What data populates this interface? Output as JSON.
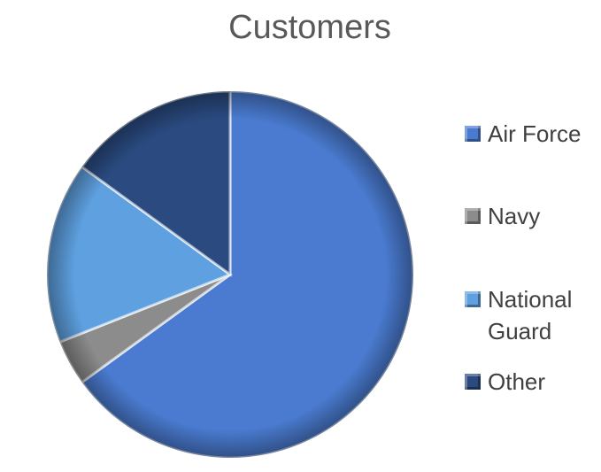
{
  "chart_data": {
    "type": "pie",
    "title": "Customers",
    "categories": [
      "Air Force",
      "Navy",
      "National Guard",
      "Other"
    ],
    "values": [
      65,
      4,
      16,
      15
    ],
    "colors": [
      "#4a7bd0",
      "#8c8c8c",
      "#5ea0e0",
      "#2a4a80"
    ],
    "legend": "right"
  }
}
